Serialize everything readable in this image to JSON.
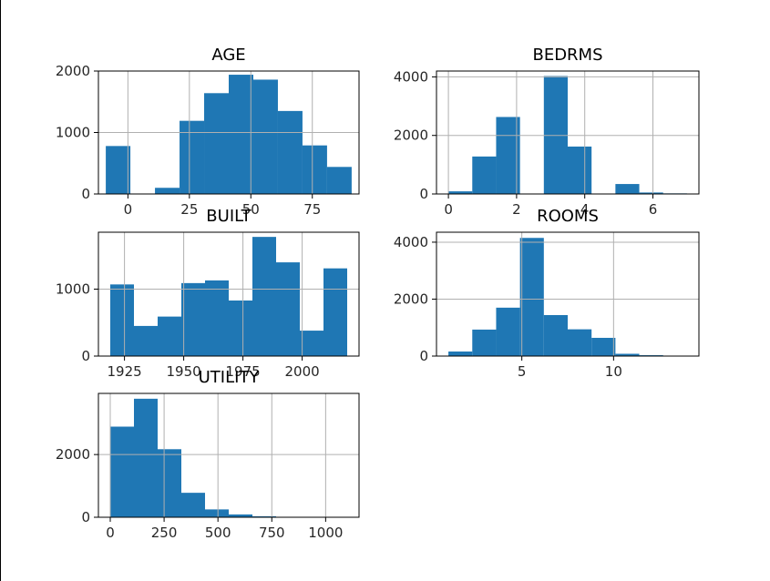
{
  "figure": {
    "bar_color": "#1f77b4",
    "grid_color": "#b0b0b0"
  },
  "chart_data": [
    {
      "type": "bar",
      "title": "AGE",
      "bins": [
        [
          -9,
          1
        ],
        [
          1,
          11
        ],
        [
          11,
          21
        ],
        [
          21,
          31
        ],
        [
          31,
          41
        ],
        [
          41,
          51
        ],
        [
          51,
          61
        ],
        [
          61,
          71
        ],
        [
          71,
          81
        ],
        [
          81,
          91
        ]
      ],
      "values": [
        780,
        0,
        100,
        1190,
        1640,
        1940,
        1860,
        1350,
        790,
        440
      ],
      "xlim": [
        -12,
        94
      ],
      "ylim": [
        0,
        2000
      ],
      "xticks": [
        0,
        25,
        50,
        75
      ],
      "xtick_labels": [
        "0",
        "25",
        "50",
        "75"
      ],
      "yticks": [
        0,
        1000,
        2000
      ],
      "ytick_labels": [
        "0",
        "1000",
        "2000"
      ],
      "grid": true
    },
    {
      "type": "bar",
      "title": "BEDRMS",
      "bins": [
        [
          0,
          0.7
        ],
        [
          0.7,
          1.4
        ],
        [
          1.4,
          2.1
        ],
        [
          2.1,
          2.8
        ],
        [
          2.8,
          3.5
        ],
        [
          3.5,
          4.2
        ],
        [
          4.2,
          4.9
        ],
        [
          4.9,
          5.6
        ],
        [
          5.6,
          6.3
        ],
        [
          6.3,
          7
        ]
      ],
      "values": [
        90,
        1280,
        2630,
        0,
        4030,
        1620,
        0,
        340,
        50,
        20
      ],
      "xlim": [
        -0.35,
        7.35
      ],
      "ylim": [
        0,
        4200
      ],
      "xticks": [
        0,
        2,
        4,
        6
      ],
      "xtick_labels": [
        "0",
        "2",
        "4",
        "6"
      ],
      "yticks": [
        0,
        2000,
        4000
      ],
      "ytick_labels": [
        "0",
        "2000",
        "4000"
      ],
      "grid": true
    },
    {
      "type": "bar",
      "title": "BUILT",
      "bins": [
        [
          1919,
          1929
        ],
        [
          1929,
          1939
        ],
        [
          1939,
          1949
        ],
        [
          1949,
          1959
        ],
        [
          1959,
          1969
        ],
        [
          1969,
          1979
        ],
        [
          1979,
          1989
        ],
        [
          1989,
          1999
        ],
        [
          1999,
          2009
        ],
        [
          2009,
          2019
        ]
      ],
      "values": [
        1070,
        450,
        590,
        1090,
        1130,
        830,
        1780,
        1400,
        380,
        1310
      ],
      "xlim": [
        1914,
        2024
      ],
      "ylim": [
        0,
        1850
      ],
      "xticks": [
        1925,
        1950,
        1975,
        2000
      ],
      "xtick_labels": [
        "1925",
        "1950",
        "1975",
        "2000"
      ],
      "yticks": [
        0,
        1000
      ],
      "ytick_labels": [
        "0",
        "1000"
      ],
      "grid": true
    },
    {
      "type": "bar",
      "title": "ROOMS",
      "bins": [
        [
          1,
          2.3
        ],
        [
          2.3,
          3.6
        ],
        [
          3.6,
          4.9
        ],
        [
          4.9,
          6.2
        ],
        [
          6.2,
          7.5
        ],
        [
          7.5,
          8.8
        ],
        [
          8.8,
          10.1
        ],
        [
          10.1,
          11.4
        ],
        [
          11.4,
          12.7
        ],
        [
          12.7,
          14
        ]
      ],
      "values": [
        160,
        930,
        1700,
        4150,
        1440,
        940,
        640,
        80,
        30,
        10
      ],
      "xlim": [
        0.35,
        14.65
      ],
      "ylim": [
        0,
        4350
      ],
      "xticks": [
        5,
        10
      ],
      "xtick_labels": [
        "5",
        "10"
      ],
      "yticks": [
        0,
        2000,
        4000
      ],
      "ytick_labels": [
        "0",
        "2000",
        "4000"
      ],
      "grid": true
    },
    {
      "type": "bar",
      "title": "UTILITY",
      "bins": [
        [
          0,
          110
        ],
        [
          110,
          220
        ],
        [
          220,
          330
        ],
        [
          330,
          440
        ],
        [
          440,
          550
        ],
        [
          550,
          660
        ],
        [
          660,
          770
        ],
        [
          770,
          880
        ],
        [
          880,
          990
        ],
        [
          990,
          1100
        ]
      ],
      "values": [
        2890,
        3780,
        2170,
        780,
        250,
        90,
        30,
        10,
        0,
        5
      ],
      "xlim": [
        -55,
        1155
      ],
      "ylim": [
        0,
        3950
      ],
      "xticks": [
        0,
        250,
        500,
        750,
        1000
      ],
      "xtick_labels": [
        "0",
        "250",
        "500",
        "750",
        "1000"
      ],
      "yticks": [
        0,
        2000
      ],
      "ytick_labels": [
        "0",
        "2000"
      ],
      "grid": true
    }
  ]
}
